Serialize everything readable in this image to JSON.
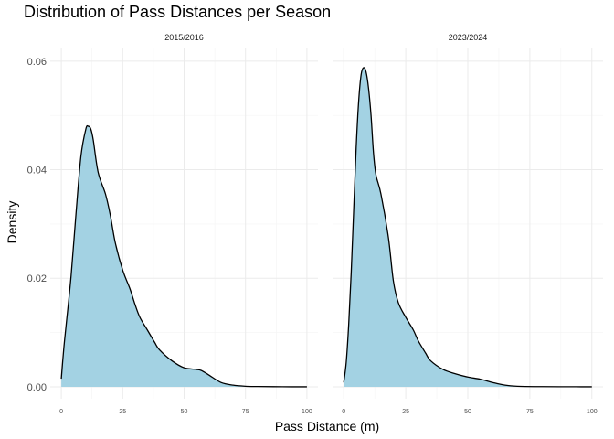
{
  "chart_data": {
    "type": "area",
    "title": "Distribution of Pass Distances per Season",
    "xlabel": "Pass Distance (m)",
    "ylabel": "Density",
    "xlim": [
      0,
      100
    ],
    "ylim": [
      0,
      0.06
    ],
    "x_ticks": [
      "0",
      "25",
      "50",
      "75",
      "100"
    ],
    "y_ticks": [
      "0.00",
      "0.02",
      "0.04",
      "0.06"
    ],
    "fill_color": "#a3d2e3",
    "line_color": "#000000",
    "grid": true,
    "panels": [
      {
        "name": "2015/2016",
        "x": [
          0,
          1,
          2,
          4,
          6,
          8,
          10,
          11,
          12,
          13,
          15,
          18,
          20,
          22,
          25,
          28,
          30,
          32,
          35,
          38,
          40,
          45,
          50,
          55,
          57,
          60,
          65,
          70,
          75,
          80,
          90,
          100
        ],
        "y": [
          0.0015,
          0.007,
          0.0115,
          0.0205,
          0.032,
          0.0425,
          0.0475,
          0.048,
          0.0475,
          0.0455,
          0.0395,
          0.0355,
          0.0315,
          0.0265,
          0.0215,
          0.018,
          0.0152,
          0.0128,
          0.0105,
          0.0082,
          0.0068,
          0.0048,
          0.0035,
          0.0032,
          0.003,
          0.0022,
          0.0008,
          0.0003,
          0.0001,
          5e-05,
          1e-05,
          0.0
        ]
      },
      {
        "name": "2023/2024",
        "x": [
          0,
          1,
          2,
          3,
          4,
          5,
          6,
          7,
          8,
          9,
          10,
          11,
          12,
          13,
          15,
          18,
          20,
          22,
          25,
          28,
          30,
          33,
          35,
          40,
          45,
          50,
          55,
          60,
          65,
          70,
          80,
          90,
          100
        ],
        "y": [
          0.0008,
          0.0045,
          0.0115,
          0.021,
          0.0325,
          0.044,
          0.0525,
          0.0575,
          0.0588,
          0.058,
          0.055,
          0.05,
          0.043,
          0.039,
          0.0355,
          0.0275,
          0.0195,
          0.0155,
          0.0128,
          0.0105,
          0.0085,
          0.0062,
          0.0048,
          0.0032,
          0.0024,
          0.0018,
          0.0014,
          0.0008,
          0.0003,
          0.0001,
          3e-05,
          1e-05,
          0.0
        ]
      }
    ]
  }
}
